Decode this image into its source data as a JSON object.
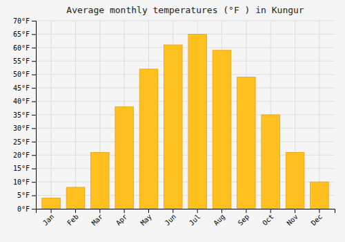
{
  "chart_data": {
    "type": "bar",
    "title": "Average monthly temperatures (°F ) in Kungur",
    "categories": [
      "Jan",
      "Feb",
      "Mar",
      "Apr",
      "May",
      "Jun",
      "Jul",
      "Aug",
      "Sep",
      "Oct",
      "Nov",
      "Dec"
    ],
    "values": [
      4,
      8,
      21,
      38,
      52,
      61,
      65,
      59,
      49,
      35,
      21,
      10
    ],
    "color": "#FFC020",
    "ylim": [
      0,
      70
    ],
    "yticks": [
      {
        "value": 0,
        "label": "0°F"
      },
      {
        "value": 5,
        "label": "5°F"
      },
      {
        "value": 10,
        "label": "10°F"
      },
      {
        "value": 15,
        "label": "15°F"
      },
      {
        "value": 20,
        "label": "20°F"
      },
      {
        "value": 25,
        "label": "25°F"
      },
      {
        "value": 30,
        "label": "30°F"
      },
      {
        "value": 35,
        "label": "35°F"
      },
      {
        "value": 40,
        "label": "40°F"
      },
      {
        "value": 45,
        "label": "45°F"
      },
      {
        "value": 50,
        "label": "50°F"
      },
      {
        "value": 55,
        "label": "55°F"
      },
      {
        "value": 60,
        "label": "60°F"
      },
      {
        "value": 65,
        "label": "65°F"
      },
      {
        "value": 70,
        "label": "70°F"
      }
    ],
    "grid": true
  }
}
